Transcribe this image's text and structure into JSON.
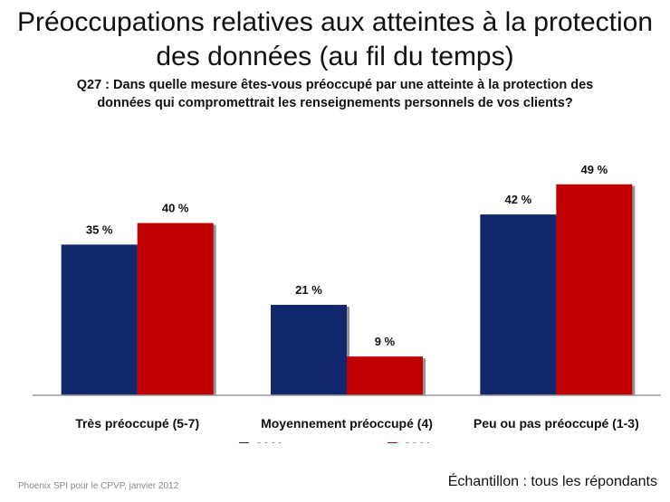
{
  "header": {
    "title_line1": "Préoccupations relatives aux atteintes à la protection",
    "title_line2": "des données (au fil du temps)",
    "question_line1": "Q27 : Dans quelle mesure êtes-vous préoccupé par une atteinte à la protection des",
    "question_line2": "données qui compromettrait les renseignements personnels de vos clients?"
  },
  "footer": {
    "source": "Phoenix SPI pour le CPVP, janvier 2012",
    "sample": "Échantillon : tous les répondants"
  },
  "colors": {
    "s2010": "#12286e",
    "s2011": "#c00000",
    "axis": "#999999"
  },
  "chart_data": {
    "type": "bar",
    "title": "Préoccupations relatives aux atteintes à la protection des données (au fil du temps)",
    "categories": [
      "Très préoccupé (5-7)",
      "Moyennement préoccupé (4)",
      "Peu ou pas préoccupé (1-3)"
    ],
    "series": [
      {
        "name": "2010",
        "values": [
          35,
          21,
          42
        ],
        "labels": [
          "35 %",
          "21 %",
          "42 %"
        ]
      },
      {
        "name": "2011",
        "values": [
          40,
          9,
          49
        ],
        "labels": [
          "40 %",
          "9 %",
          "49 %"
        ]
      }
    ],
    "ylim": [
      0,
      50
    ],
    "grid": false,
    "legend": "bottom"
  }
}
